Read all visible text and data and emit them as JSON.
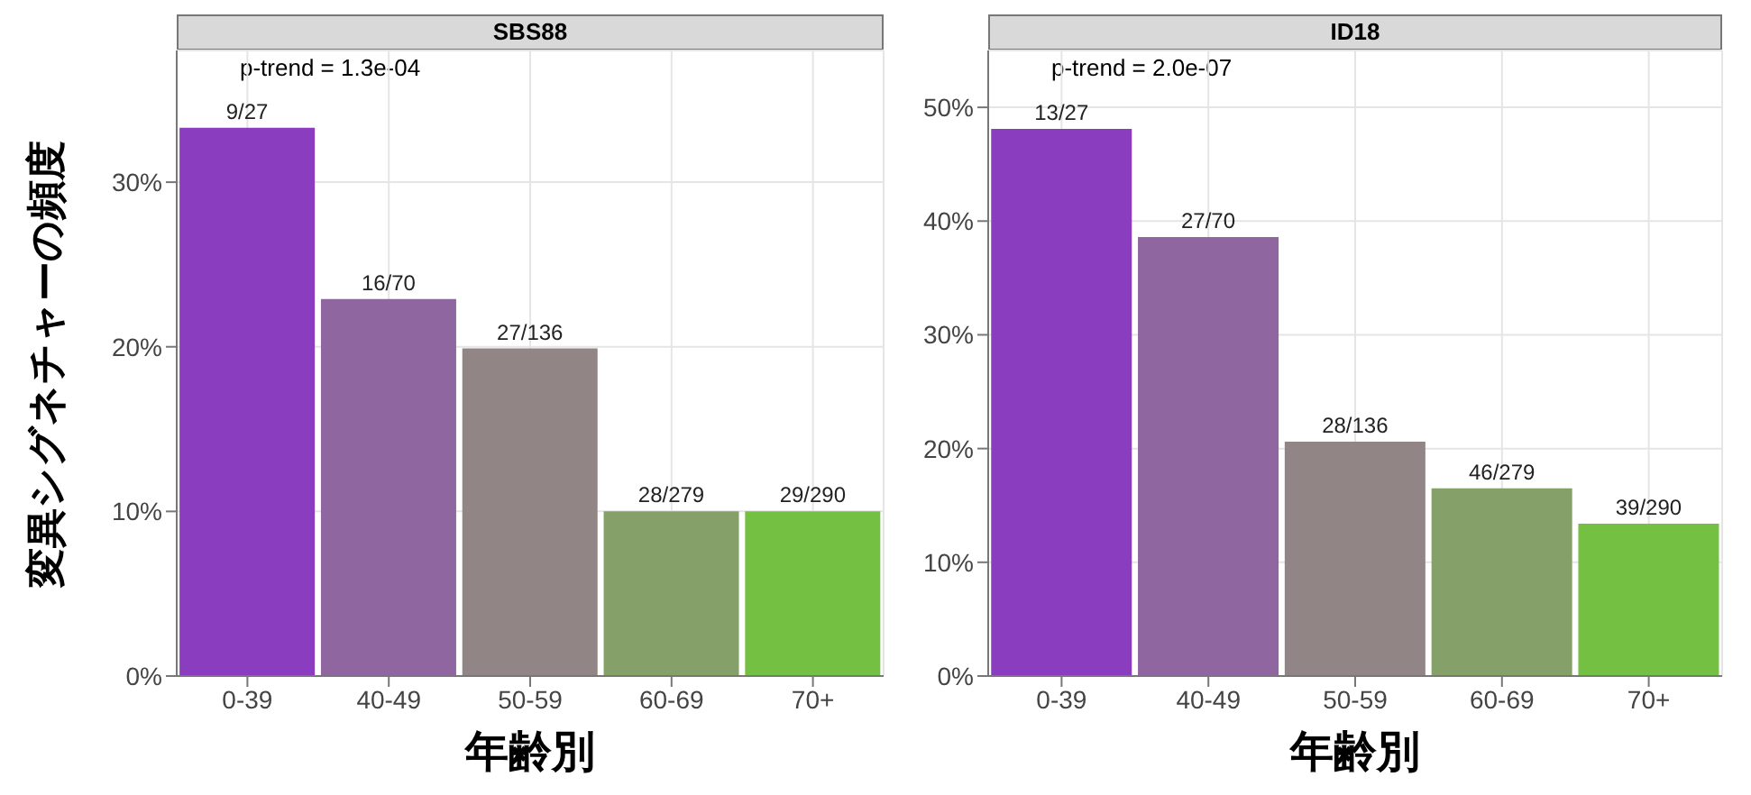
{
  "chart_data": [
    {
      "type": "bar",
      "title": "SBS88",
      "xlabel": "年齢別",
      "ylabel": "変異シグネチャーの頻度",
      "categories": [
        "0-39",
        "40-49",
        "50-59",
        "60-69",
        "70+"
      ],
      "values": [
        33.3,
        22.9,
        19.9,
        10.0,
        10.0
      ],
      "value_labels": [
        "9/27",
        "16/70",
        "27/136",
        "28/279",
        "29/290"
      ],
      "colors": [
        "#8a3dbf",
        "#9066a0",
        "#928585",
        "#86a06a",
        "#74c043"
      ],
      "ylim": [
        0,
        38
      ],
      "yticks": [
        {
          "value": 0,
          "label": "0%"
        },
        {
          "value": 10,
          "label": "10%"
        },
        {
          "value": 20,
          "label": "20%"
        },
        {
          "value": 30,
          "label": "30%"
        }
      ],
      "grid": true,
      "annotations": [
        "p-trend = 1.3e-04"
      ]
    },
    {
      "type": "bar",
      "title": "ID18",
      "xlabel": "年齢別",
      "categories": [
        "0-39",
        "40-49",
        "50-59",
        "60-69",
        "70+"
      ],
      "values": [
        48.1,
        38.6,
        20.6,
        16.5,
        13.4
      ],
      "value_labels": [
        "13/27",
        "27/70",
        "28/136",
        "46/279",
        "39/290"
      ],
      "colors": [
        "#8a3dbf",
        "#9066a0",
        "#928585",
        "#86a06a",
        "#74c043"
      ],
      "ylim": [
        0,
        55
      ],
      "yticks": [
        {
          "value": 0,
          "label": "0%"
        },
        {
          "value": 10,
          "label": "10%"
        },
        {
          "value": 20,
          "label": "20%"
        },
        {
          "value": 30,
          "label": "30%"
        },
        {
          "value": 40,
          "label": "40%"
        },
        {
          "value": 50,
          "label": "50%"
        }
      ],
      "grid": true,
      "annotations": [
        "p-trend = 2.0e-07"
      ]
    }
  ]
}
